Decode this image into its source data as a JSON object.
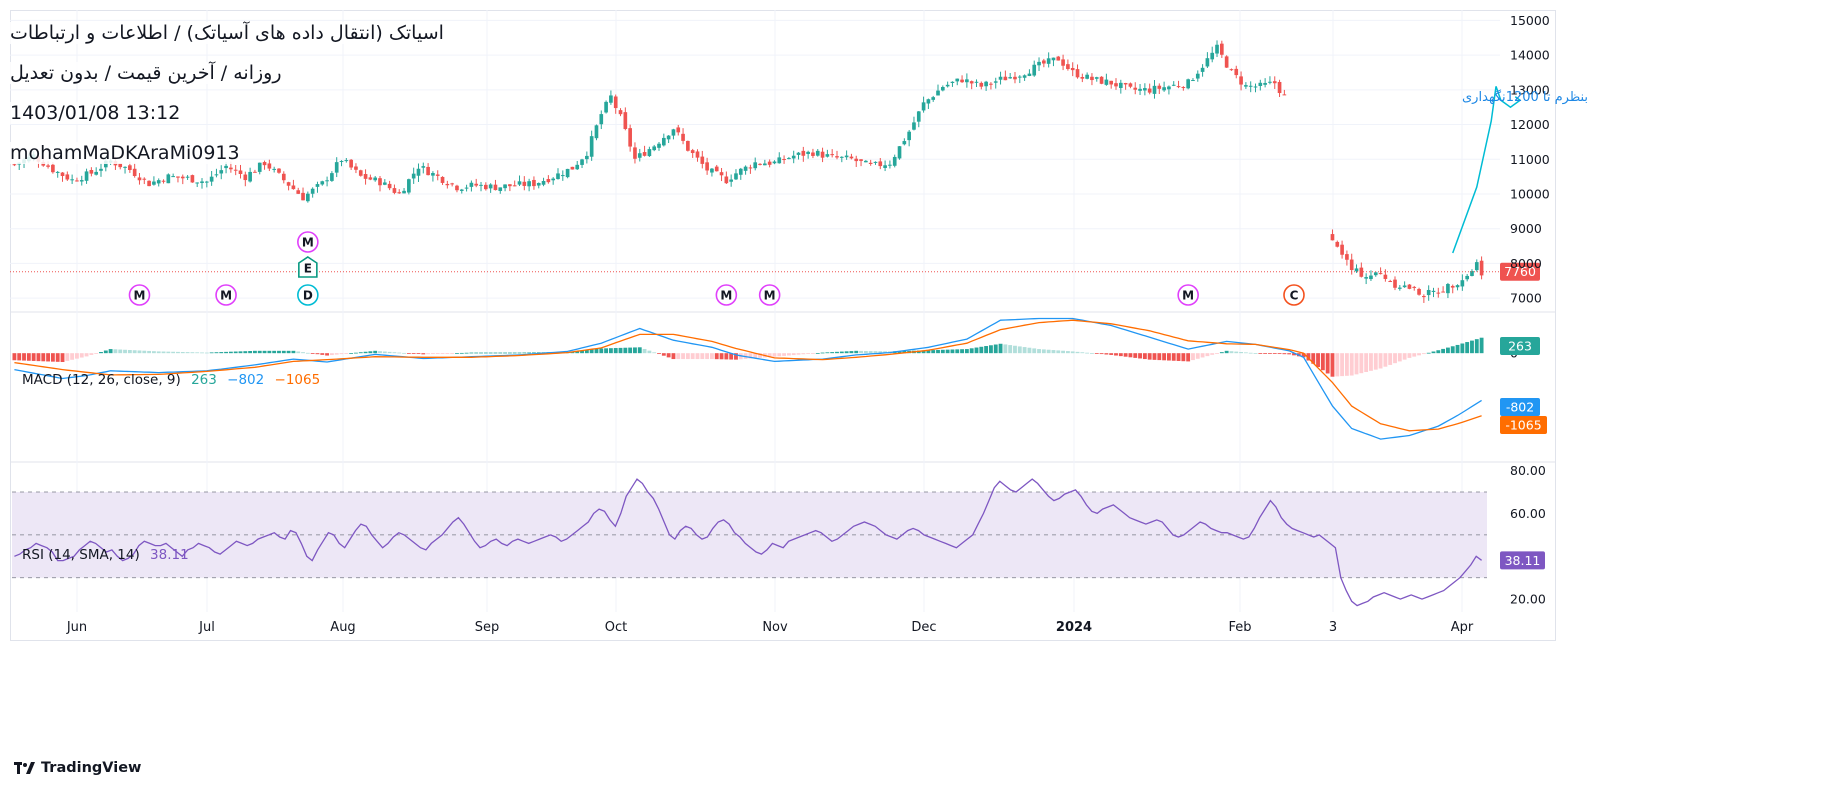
{
  "header": {
    "title": "اسیاتک (انتقال داده های آسیاتک) / اطلاعات و ارتباطات",
    "subtitle": "روزانه / آخرین قیمت / بدون تعدیل",
    "datetime": "1403/01/08 13:12",
    "author": "mohamMaDKAraMi0913"
  },
  "brand": {
    "name": "TradingView"
  },
  "colors": {
    "up": "#26a69a",
    "down": "#ef5350",
    "up_light": "#b2dfdb",
    "down_light": "#ffcdd2",
    "macd_line": "#2196f3",
    "signal_line": "#ff6d00",
    "rsi_line": "#7e57c2",
    "rsi_band": "#ede7f6",
    "grid": "#f0f3fa",
    "annotation": "#00bcd4",
    "annotation_text": "#1e88e5",
    "event_m": "#e040fb",
    "event_e": "#089981",
    "event_d": "#00bcd4",
    "event_c": "#f4511e"
  },
  "chart_data": [
    {
      "type": "candlestick",
      "name": "price",
      "y_ticks": [
        "15000",
        "14000",
        "13000",
        "12000",
        "11000",
        "10000",
        "9000",
        "8000",
        "7000"
      ],
      "ylim": [
        6600,
        15300
      ],
      "x_ticks": [
        "Jun",
        "Jul",
        "Aug",
        "Sep",
        "Oct",
        "Nov",
        "Dec",
        "2024",
        "Feb",
        "3",
        "Apr"
      ],
      "last_price": "7760",
      "anchors": [
        [
          0,
          10850
        ],
        [
          4,
          11100
        ],
        [
          8,
          10700
        ],
        [
          12,
          10400
        ],
        [
          16,
          10600
        ],
        [
          20,
          10950
        ],
        [
          24,
          10700
        ],
        [
          28,
          10300
        ],
        [
          32,
          10500
        ],
        [
          36,
          10450
        ],
        [
          40,
          10350
        ],
        [
          44,
          10800
        ],
        [
          48,
          10500
        ],
        [
          52,
          10900
        ],
        [
          56,
          10400
        ],
        [
          60,
          9900
        ],
        [
          64,
          10300
        ],
        [
          68,
          11000
        ],
        [
          72,
          10500
        ],
        [
          76,
          10350
        ],
        [
          80,
          10000
        ],
        [
          84,
          10800
        ],
        [
          88,
          10500
        ],
        [
          92,
          10200
        ],
        [
          96,
          10250
        ],
        [
          100,
          10200
        ],
        [
          104,
          10250
        ],
        [
          108,
          10300
        ],
        [
          112,
          10500
        ],
        [
          116,
          10750
        ],
        [
          119,
          11200
        ],
        [
          122,
          12300
        ],
        [
          124,
          12800
        ],
        [
          126,
          12200
        ],
        [
          129,
          11000
        ],
        [
          133,
          11400
        ],
        [
          137,
          11900
        ],
        [
          140,
          11300
        ],
        [
          144,
          10700
        ],
        [
          148,
          10400
        ],
        [
          150,
          10600
        ],
        [
          154,
          10900
        ],
        [
          158,
          10900
        ],
        [
          162,
          11100
        ],
        [
          166,
          11200
        ],
        [
          170,
          11050
        ],
        [
          174,
          11000
        ],
        [
          178,
          10800
        ],
        [
          182,
          10900
        ],
        [
          186,
          11800
        ],
        [
          189,
          12600
        ],
        [
          193,
          13100
        ],
        [
          197,
          13300
        ],
        [
          201,
          13100
        ],
        [
          205,
          13300
        ],
        [
          209,
          13450
        ],
        [
          213,
          13700
        ],
        [
          217,
          13900
        ],
        [
          220,
          13500
        ],
        [
          224,
          13300
        ],
        [
          228,
          13200
        ],
        [
          232,
          13000
        ],
        [
          236,
          13000
        ],
        [
          240,
          13100
        ],
        [
          244,
          13200
        ],
        [
          247,
          13700
        ],
        [
          250,
          14200
        ],
        [
          253,
          13500
        ],
        [
          256,
          13100
        ],
        [
          259,
          13100
        ],
        [
          262,
          13200
        ],
        [
          264,
          12800
        ],
        [
          265,
          null
        ],
        [
          273,
          null
        ],
        [
          274,
          8600
        ],
        [
          276,
          8300
        ],
        [
          278,
          7800
        ],
        [
          281,
          7650
        ],
        [
          284,
          7700
        ],
        [
          287,
          7400
        ],
        [
          290,
          7300
        ],
        [
          293,
          7100
        ],
        [
          296,
          7200
        ],
        [
          299,
          7400
        ],
        [
          302,
          7650
        ],
        [
          304,
          8000
        ],
        [
          305,
          7760
        ]
      ],
      "events": [
        {
          "bar": 26,
          "label": "M"
        },
        {
          "bar": 44,
          "label": "M"
        },
        {
          "bar": 61,
          "label": "D"
        },
        {
          "bar": 61,
          "label": "E"
        },
        {
          "bar": 61,
          "label": "M"
        },
        {
          "bar": 148,
          "label": "M"
        },
        {
          "bar": 157,
          "label": "M"
        },
        {
          "bar": 244,
          "label": "M"
        },
        {
          "bar": 266,
          "label": "C"
        }
      ],
      "annotation": {
        "text": "بنظرم تا 1200نگهداری",
        "path": [
          [
            299,
            8300
          ],
          [
            304,
            10200
          ],
          [
            307,
            12100
          ],
          [
            308,
            13100
          ],
          [
            309,
            12700
          ],
          [
            311,
            12500
          ],
          [
            313,
            12700
          ],
          [
            312,
            12800
          ]
        ]
      }
    },
    {
      "type": "macd",
      "name": "MACD (12, 26, close, 9)",
      "legend": {
        "hist": "263",
        "macd": "−802",
        "signal": "−1065"
      },
      "axis_ticks": [
        "0"
      ],
      "labels": {
        "hist": "263",
        "macd": "-802",
        "signal": "-1065"
      },
      "ylim": [
        -1850,
        700
      ],
      "macd_anchors": [
        [
          0,
          -280
        ],
        [
          10,
          -430
        ],
        [
          15,
          -380
        ],
        [
          20,
          -300
        ],
        [
          30,
          -330
        ],
        [
          40,
          -300
        ],
        [
          50,
          -200
        ],
        [
          58,
          -100
        ],
        [
          65,
          -150
        ],
        [
          75,
          -20
        ],
        [
          85,
          -90
        ],
        [
          95,
          -60
        ],
        [
          105,
          -30
        ],
        [
          115,
          30
        ],
        [
          122,
          170
        ],
        [
          130,
          420
        ],
        [
          137,
          220
        ],
        [
          145,
          100
        ],
        [
          150,
          -30
        ],
        [
          158,
          -140
        ],
        [
          168,
          -100
        ],
        [
          175,
          -30
        ],
        [
          182,
          10
        ],
        [
          190,
          100
        ],
        [
          198,
          240
        ],
        [
          205,
          560
        ],
        [
          213,
          590
        ],
        [
          220,
          590
        ],
        [
          228,
          470
        ],
        [
          236,
          270
        ],
        [
          244,
          70
        ],
        [
          252,
          200
        ],
        [
          258,
          150
        ],
        [
          265,
          40
        ],
        [
          268,
          -70
        ],
        [
          274,
          -900
        ],
        [
          278,
          -1280
        ],
        [
          284,
          -1460
        ],
        [
          290,
          -1400
        ],
        [
          296,
          -1240
        ],
        [
          300,
          -1060
        ],
        [
          305,
          -802
        ]
      ],
      "signal_anchors": [
        [
          0,
          -160
        ],
        [
          10,
          -280
        ],
        [
          20,
          -370
        ],
        [
          30,
          -360
        ],
        [
          40,
          -310
        ],
        [
          50,
          -240
        ],
        [
          58,
          -140
        ],
        [
          65,
          -110
        ],
        [
          75,
          -60
        ],
        [
          85,
          -70
        ],
        [
          95,
          -70
        ],
        [
          105,
          -40
        ],
        [
          115,
          10
        ],
        [
          122,
          90
        ],
        [
          130,
          320
        ],
        [
          137,
          320
        ],
        [
          145,
          200
        ],
        [
          150,
          80
        ],
        [
          158,
          -80
        ],
        [
          168,
          -110
        ],
        [
          175,
          -70
        ],
        [
          182,
          -20
        ],
        [
          190,
          50
        ],
        [
          198,
          170
        ],
        [
          205,
          400
        ],
        [
          213,
          520
        ],
        [
          220,
          560
        ],
        [
          228,
          500
        ],
        [
          236,
          380
        ],
        [
          244,
          210
        ],
        [
          252,
          160
        ],
        [
          258,
          150
        ],
        [
          265,
          60
        ],
        [
          268,
          0
        ],
        [
          274,
          -500
        ],
        [
          278,
          -900
        ],
        [
          284,
          -1200
        ],
        [
          290,
          -1320
        ],
        [
          296,
          -1290
        ],
        [
          300,
          -1200
        ],
        [
          305,
          -1065
        ]
      ]
    },
    {
      "type": "line",
      "name": "RSI (14, SMA, 14)",
      "legend_value": "38.11",
      "y_ticks": [
        "80.00",
        "60.00",
        "20.00"
      ],
      "bands": [
        30,
        50,
        70
      ],
      "ylim": [
        14,
        84
      ],
      "values": [
        40,
        41,
        43,
        44,
        46,
        45,
        44,
        42,
        38,
        38,
        39,
        40,
        43,
        45,
        47,
        46,
        44,
        42,
        43,
        40,
        38,
        39,
        41,
        45,
        47,
        46,
        45,
        45,
        46,
        44,
        42,
        40,
        43,
        44,
        46,
        45,
        44,
        42,
        41,
        43,
        45,
        47,
        46,
        45,
        46,
        48,
        49,
        50,
        51,
        49,
        48,
        52,
        51,
        46,
        40,
        38,
        43,
        47,
        51,
        50,
        46,
        44,
        48,
        52,
        55,
        54,
        50,
        47,
        44,
        46,
        49,
        51,
        50,
        48,
        46,
        44,
        43,
        46,
        48,
        50,
        53,
        56,
        58,
        55,
        51,
        47,
        44,
        45,
        47,
        48,
        46,
        45,
        47,
        48,
        47,
        46,
        47,
        48,
        49,
        50,
        49,
        47,
        48,
        50,
        52,
        54,
        56,
        60,
        62,
        61,
        57,
        54,
        60,
        68,
        72,
        76,
        74,
        70,
        67,
        62,
        56,
        50,
        48,
        52,
        54,
        53,
        50,
        48,
        49,
        53,
        56,
        57,
        55,
        51,
        49,
        46,
        44,
        42,
        41,
        43,
        46,
        45,
        44,
        47,
        48,
        49,
        50,
        51,
        52,
        51,
        49,
        47,
        48,
        50,
        52,
        54,
        55,
        56,
        55,
        54,
        52,
        50,
        49,
        48,
        50,
        52,
        53,
        52,
        50,
        49,
        48,
        47,
        46,
        45,
        44,
        46,
        48,
        50,
        55,
        60,
        66,
        72,
        75,
        73,
        71,
        70,
        72,
        74,
        76,
        74,
        71,
        68,
        66,
        67,
        69,
        70,
        71,
        68,
        64,
        61,
        60,
        62,
        63,
        64,
        62,
        60,
        58,
        57,
        56,
        55,
        56,
        57,
        56,
        53,
        50,
        49,
        50,
        52,
        54,
        56,
        55,
        53,
        52,
        51,
        51,
        50,
        49,
        48,
        49,
        53,
        58,
        62,
        66,
        63,
        58,
        55,
        53,
        52,
        51,
        50,
        49,
        50,
        48,
        46,
        44,
        30,
        24,
        19,
        17,
        18,
        19,
        21,
        22,
        23,
        22,
        21,
        20,
        21,
        22,
        21,
        20,
        21,
        22,
        23,
        24,
        26,
        28,
        30,
        33,
        36,
        40,
        38.11
      ]
    }
  ]
}
